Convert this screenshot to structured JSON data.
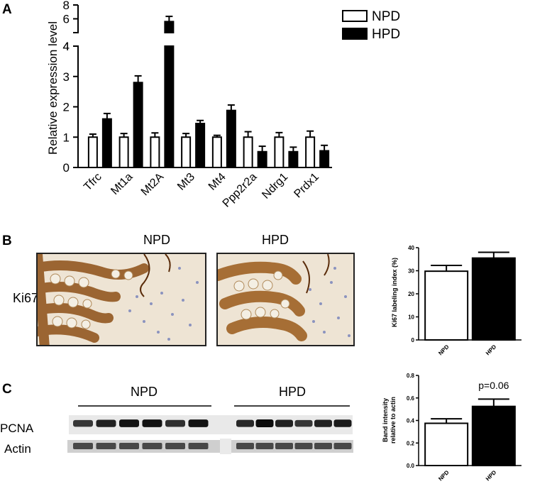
{
  "panel_labels": {
    "a": "A",
    "b": "B",
    "c": "C"
  },
  "legend": {
    "npd": "NPD",
    "hpd": "HPD"
  },
  "colors": {
    "npd": "#ffffff",
    "hpd": "#000000",
    "stain_brown": "#a5611c",
    "nuclei_blue": "#6a78b8",
    "background": "#ede3d3"
  },
  "chart_data": [
    {
      "type": "bar",
      "panel": "A",
      "ylabel": "Relative expression level",
      "broken_axis": true,
      "ylim_lower": [
        0,
        4
      ],
      "ylim_upper": [
        4,
        8
      ],
      "yticks_lower": [
        "0",
        "1",
        "2",
        "3",
        "4"
      ],
      "yticks_upper": [
        "4",
        "6",
        "8"
      ],
      "categories": [
        "Tfrc",
        "Mt1a",
        "Mt2A",
        "Mt3",
        "Mt4",
        "Ppp2r2a",
        "Ndrg1",
        "Prdx1"
      ],
      "series": [
        {
          "name": "NPD",
          "values": [
            1.0,
            1.0,
            1.0,
            1.0,
            1.0,
            1.0,
            1.0,
            1.0
          ],
          "errors": [
            0.1,
            0.12,
            0.14,
            0.12,
            0.06,
            0.18,
            0.15,
            0.2
          ]
        },
        {
          "name": "HPD",
          "values": [
            1.6,
            2.8,
            5.6,
            1.45,
            1.88,
            0.52,
            0.52,
            0.55
          ],
          "errors": [
            0.18,
            0.22,
            0.75,
            0.1,
            0.18,
            0.18,
            0.15,
            0.18
          ]
        }
      ],
      "legend_position": "top-right"
    },
    {
      "type": "bar",
      "panel": "B",
      "ylabel": "Ki67 labeling index (%)",
      "ylim": [
        0,
        40
      ],
      "yticks": [
        "0",
        "10",
        "20",
        "30",
        "40"
      ],
      "categories": [
        "NPD",
        "HPD"
      ],
      "values": [
        29.8,
        35.5
      ],
      "errors": [
        2.5,
        2.5
      ]
    },
    {
      "type": "bar",
      "panel": "C",
      "ylabel_line1": "Band intensity",
      "ylabel_line2": "relative to actin",
      "ylim": [
        0,
        0.8
      ],
      "yticks": [
        "0.0",
        "0.2",
        "0.4",
        "0.6",
        "0.8"
      ],
      "categories": [
        "NPD",
        "HPD"
      ],
      "values": [
        0.375,
        0.525
      ],
      "errors": [
        0.04,
        0.065
      ],
      "annotation": "p=0.06"
    }
  ],
  "panel_b": {
    "title_npd": "NPD",
    "title_hpd": "HPD",
    "row_label": "Ki67"
  },
  "panel_c": {
    "group_npd": "NPD",
    "group_hpd": "HPD",
    "row_pcna": "PCNA",
    "row_actin": "Actin",
    "pcna_band_intensity": [
      0.7,
      0.85,
      0.95,
      0.95,
      0.75,
      0.95,
      0.8,
      1.0,
      0.85,
      0.7,
      0.85,
      0.9
    ],
    "actin_band_intensity": [
      0.75,
      0.75,
      0.75,
      0.75,
      0.75,
      0.75,
      0.75,
      0.75,
      0.75,
      0.75,
      0.75,
      0.75
    ]
  }
}
